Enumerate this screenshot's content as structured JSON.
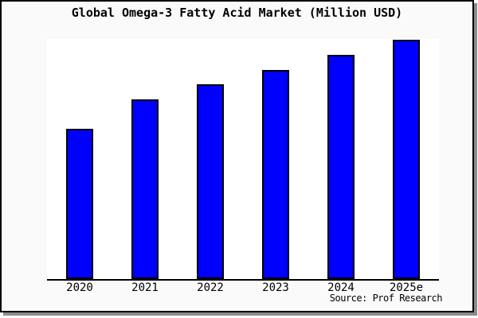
{
  "header": {
    "title": "Global Omega-3 Fatty Acid Market (Million USD)"
  },
  "footer": {
    "source_label": "Source: Prof Research"
  },
  "colors": {
    "bar_fill": "#0000ff",
    "bar_edge": "#000000",
    "card_background": "#fafafa",
    "plot_background": "#ffffff",
    "axis": "#000000",
    "card_border": "#000000",
    "card_shadow": "#8c8c8c",
    "text": "#000000"
  },
  "chart_data": {
    "type": "bar",
    "title": "Global Omega-3 Fatty Acid Market (Million USD)",
    "categories": [
      "2020",
      "2021",
      "2022",
      "2023",
      "2024",
      "2025e"
    ],
    "values": [
      62.6,
      74.8,
      81.1,
      87.1,
      93.4,
      99.7
    ],
    "value_note": "no y-axis tick labels shown; values estimated as percent of plot height (tallest bar 2025e ~ 100)",
    "xlabel": "",
    "ylabel": "",
    "ylim": [
      0,
      100
    ],
    "grid": false,
    "legend": false,
    "annotations": [
      "Source: Prof Research"
    ]
  }
}
